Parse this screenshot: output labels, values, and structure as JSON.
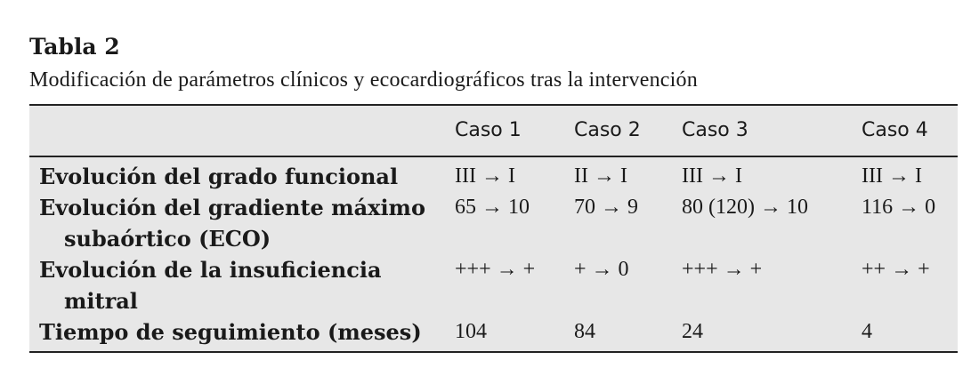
{
  "caption": {
    "title": "Tabla 2",
    "subtitle": "Modificación de parámetros clínicos y ecocardiográficos tras la intervención"
  },
  "table": {
    "columns": [
      "",
      "Caso 1",
      "Caso 2",
      "Caso 3",
      "Caso 4"
    ],
    "rows": [
      {
        "label_line1": "Evolución del grado funcional",
        "label_line2": "",
        "values": [
          "III → I",
          "II → I",
          "III → I",
          "III → I"
        ]
      },
      {
        "label_line1": "Evolución del gradiente máximo",
        "label_line2": "subaórtico (ECO)",
        "values": [
          "65 → 10",
          "70 → 9",
          "80 (120) → 10",
          "116 → 0"
        ]
      },
      {
        "label_line1": "Evolución de la insuficiencia",
        "label_line2": "mitral",
        "values": [
          "+++ → +",
          "+ → 0",
          "+++ → +",
          "++ → +"
        ]
      },
      {
        "label_line1": "Tiempo de seguimiento (meses)",
        "label_line2": "",
        "values": [
          "104",
          "84",
          "24",
          "4"
        ]
      }
    ]
  }
}
